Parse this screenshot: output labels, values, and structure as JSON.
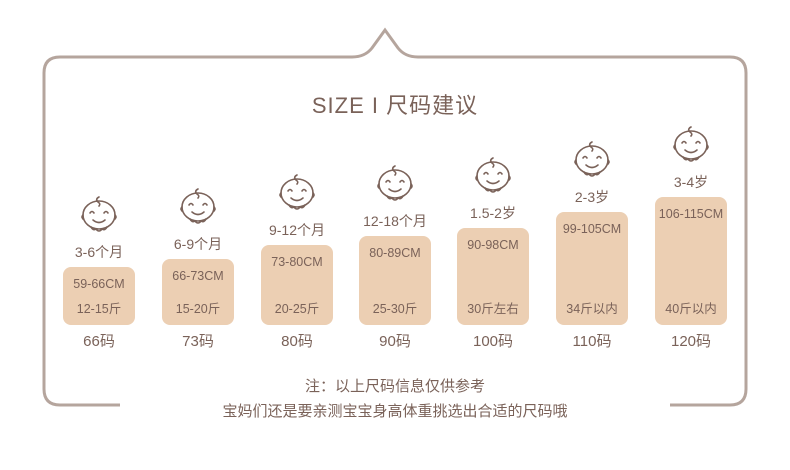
{
  "title": "SIZE  I  尺码建议",
  "colors": {
    "frame": "#b5a59d",
    "text": "#7a6259",
    "box": "#eccfb3"
  },
  "sizes": [
    {
      "age": "3-6个月",
      "height": "59-66CM",
      "weight": "12-15斤",
      "size": "66码"
    },
    {
      "age": "6-9个月",
      "height": "66-73CM",
      "weight": "15-20斤",
      "size": "73码"
    },
    {
      "age": "9-12个月",
      "height": "73-80CM",
      "weight": "20-25斤",
      "size": "80码"
    },
    {
      "age": "12-18个月",
      "height": "80-89CM",
      "weight": "25-30斤",
      "size": "90码"
    },
    {
      "age": "1.5-2岁",
      "height": "90-98CM",
      "weight": "30斤左右",
      "size": "100码"
    },
    {
      "age": "2-3岁",
      "height": "99-105CM",
      "weight": "34斤以内",
      "size": "110码"
    },
    {
      "age": "3-4岁",
      "height": "106-115CM",
      "weight": "40斤以内",
      "size": "120码"
    }
  ],
  "note_line1": "注：以上尺码信息仅供参考",
  "note_line2": "宝妈们还是要亲测宝宝身高体重挑选出合适的尺码哦"
}
